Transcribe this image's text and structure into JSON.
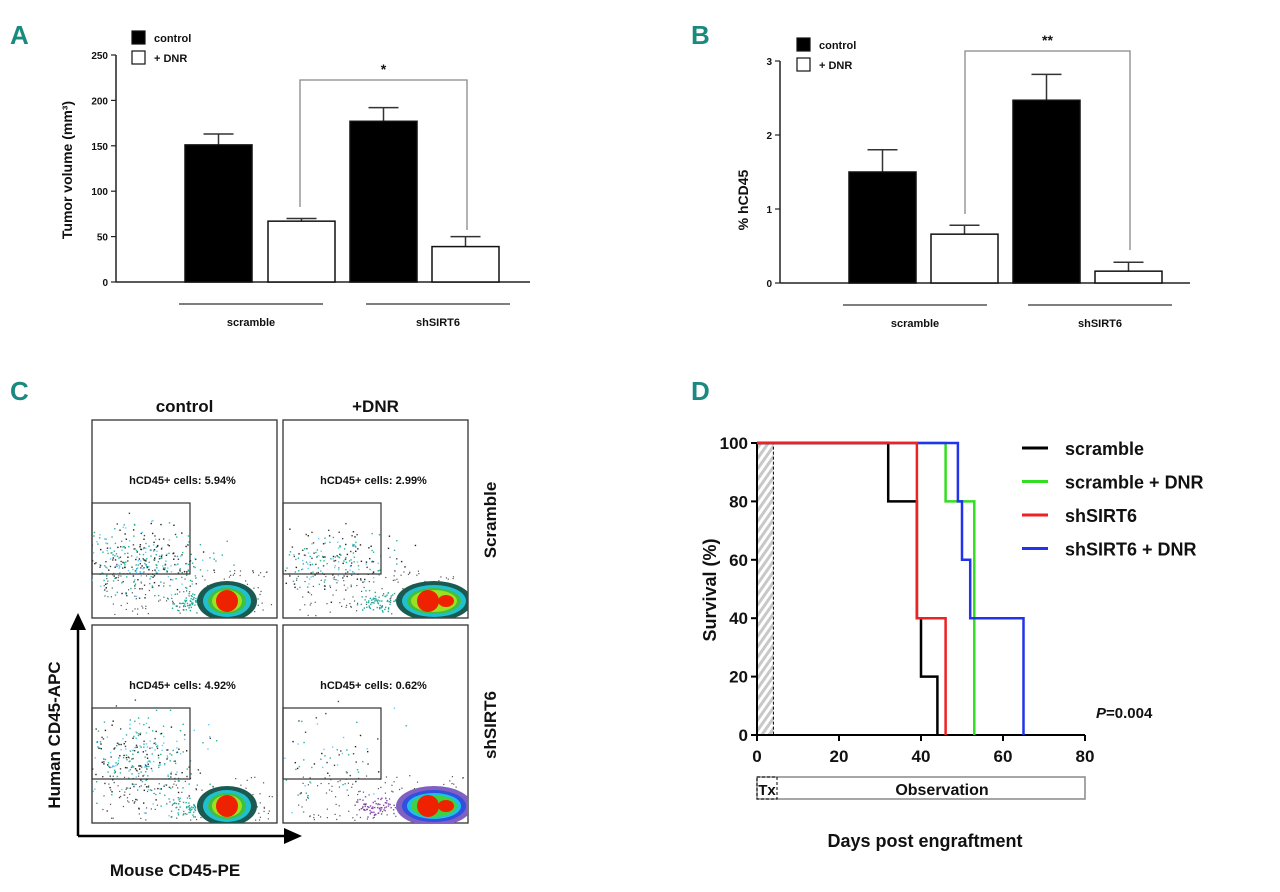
{
  "panel_letters": {
    "a": "A",
    "b": "B",
    "c": "C",
    "d": "D"
  },
  "colors": {
    "panel_letter": "#1a8a80",
    "control": "#000000",
    "dnr": "#ffffff",
    "scramble": "#000000",
    "scramble_dnr": "#33dd22",
    "shsirt6": "#ee2222",
    "shsirt6_dnr": "#2233ee"
  },
  "chart_data": [
    {
      "panel": "A",
      "type": "bar",
      "ylabel": "Tumor volume (mm³)",
      "ylim": [
        0,
        250
      ],
      "yticks": [
        "0",
        "50",
        "100",
        "150",
        "200",
        "250"
      ],
      "groups": [
        "scramble",
        "shSIRT6"
      ],
      "series": [
        {
          "name": "control",
          "values": [
            151,
            177
          ],
          "errors": [
            12,
            15
          ]
        },
        {
          "name": "+ DNR",
          "values": [
            67,
            39
          ],
          "errors": [
            3,
            11
          ]
        }
      ],
      "significance": {
        "label": "*",
        "between": [
          "scramble + DNR",
          "shSIRT6 + DNR"
        ]
      },
      "legend": "top-left"
    },
    {
      "panel": "B",
      "type": "bar",
      "ylabel": "% hCD45",
      "ylim": [
        0,
        3
      ],
      "yticks": [
        "0",
        "1",
        "2",
        "3"
      ],
      "groups": [
        "scramble",
        "shSIRT6"
      ],
      "series": [
        {
          "name": "control",
          "values": [
            1.5,
            2.47
          ],
          "errors": [
            0.3,
            0.35
          ]
        },
        {
          "name": "+ DNR",
          "values": [
            0.66,
            0.16
          ],
          "errors": [
            0.12,
            0.12
          ]
        }
      ],
      "significance": {
        "label": "**",
        "between": [
          "scramble + DNR",
          "shSIRT6 + DNR"
        ]
      },
      "legend": "top-left"
    },
    {
      "panel": "C",
      "type": "scatter",
      "columns": [
        "control",
        "+DNR"
      ],
      "rows": [
        "Scramble",
        "shSIRT6"
      ],
      "xlabel": "Mouse CD45-PE",
      "ylabel": "Human CD45-APC",
      "gates": [
        [
          "hCD45+ cells: 5.94%",
          "hCD45+ cells: 2.99%"
        ],
        [
          "hCD45+ cells: 4.92%",
          "hCD45+ cells: 0.62%"
        ]
      ],
      "gate_values": [
        [
          5.94,
          2.99
        ],
        [
          4.92,
          0.62
        ]
      ]
    },
    {
      "panel": "D",
      "type": "line",
      "subtype": "kaplan-meier",
      "xlabel": "Days post engraftment",
      "ylabel": "Survival (%)",
      "xlim": [
        0,
        80
      ],
      "ylim": [
        0,
        100
      ],
      "xticks": [
        "0",
        "20",
        "40",
        "60",
        "80"
      ],
      "yticks": [
        "0",
        "20",
        "40",
        "60",
        "80",
        "100"
      ],
      "series": [
        {
          "name": "scramble",
          "steps": [
            [
              0,
              100
            ],
            [
              32,
              80
            ],
            [
              39,
              40
            ],
            [
              40,
              20
            ],
            [
              44,
              0
            ]
          ]
        },
        {
          "name": "scramble + DNR",
          "steps": [
            [
              0,
              100
            ],
            [
              46,
              80
            ],
            [
              53,
              0
            ]
          ]
        },
        {
          "name": "shSIRT6",
          "steps": [
            [
              0,
              100
            ],
            [
              39,
              40
            ],
            [
              46,
              0
            ]
          ]
        },
        {
          "name": "shSIRT6 + DNR",
          "steps": [
            [
              0,
              100
            ],
            [
              49,
              80
            ],
            [
              50,
              60
            ],
            [
              52,
              40
            ],
            [
              65,
              0
            ]
          ]
        }
      ],
      "treatment_window": [
        0,
        4
      ],
      "timeline": {
        "tx": "Tx",
        "observation": "Observation"
      },
      "pvalue": {
        "italic": "P",
        "rest": "=0.004"
      },
      "legend": "top-right"
    }
  ]
}
